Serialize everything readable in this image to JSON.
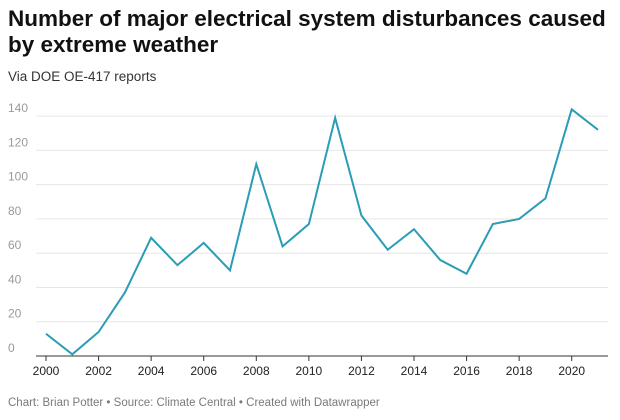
{
  "chart_data": {
    "type": "line",
    "title": "Number of major electrical system disturbances caused by extreme weather",
    "subtitle": "Via DOE OE-417 reports",
    "xlabel": "",
    "ylabel": "",
    "x": [
      2000,
      2001,
      2002,
      2003,
      2004,
      2005,
      2006,
      2007,
      2008,
      2009,
      2010,
      2011,
      2012,
      2013,
      2014,
      2015,
      2016,
      2017,
      2018,
      2019,
      2020,
      2021
    ],
    "series": [
      {
        "values": [
          13,
          1,
          14,
          37,
          69,
          53,
          66,
          50,
          112,
          64,
          77,
          139,
          82,
          62,
          74,
          56,
          48,
          77,
          80,
          92,
          144,
          132
        ]
      }
    ],
    "xticks": [
      "2000",
      "2002",
      "2004",
      "2006",
      "2008",
      "2010",
      "2012",
      "2014",
      "2016",
      "2018",
      "2020"
    ],
    "yticks": [
      "0",
      "20",
      "40",
      "60",
      "80",
      "100",
      "120",
      "140"
    ],
    "xlim": [
      2000,
      2021
    ],
    "ylim": [
      0,
      150
    ],
    "grid": true,
    "line_color": "#2a9db5",
    "footer": "Chart: Brian Potter • Source: Climate Central • Created with Datawrapper"
  }
}
